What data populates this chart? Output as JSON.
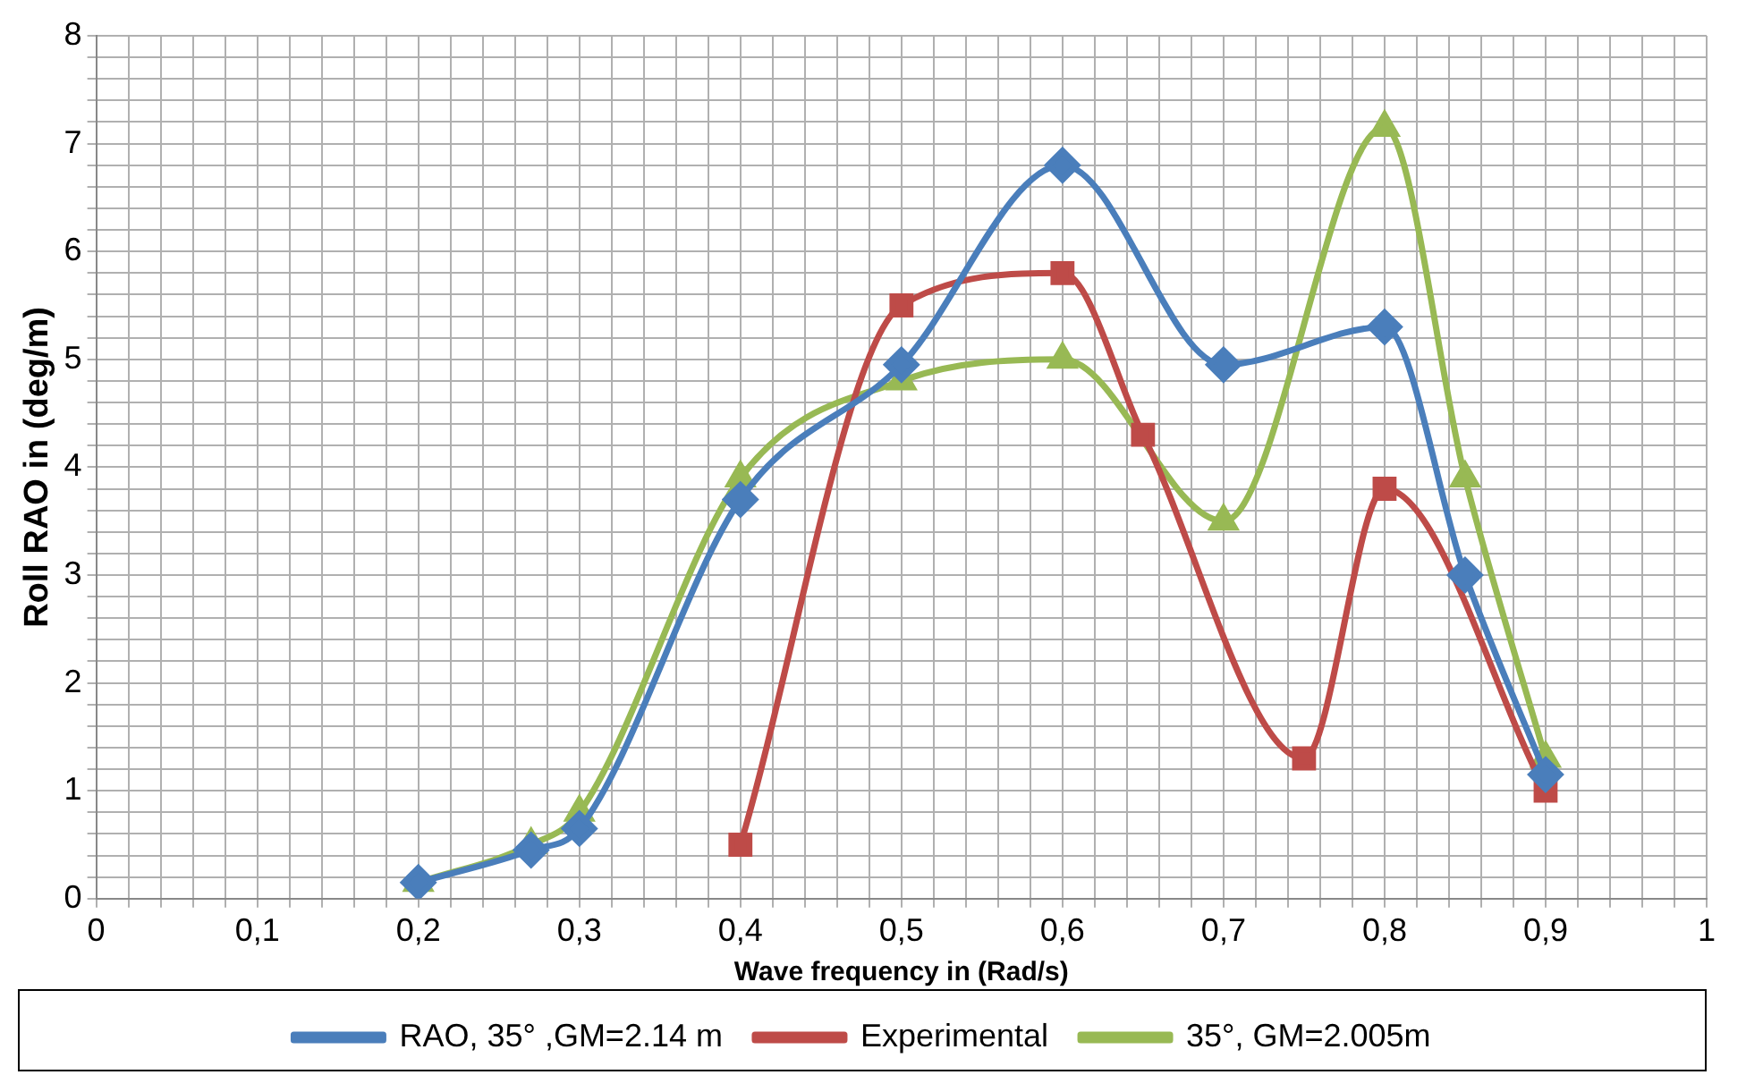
{
  "chart_data": {
    "type": "line",
    "xlabel": "Wave frequency in (Rad/s)",
    "ylabel": "Roll RAO in (deg/m)",
    "series": [
      {
        "name": "RAO, 35° ,GM=2.14 m",
        "color": "#4a7ebb",
        "marker": "diamond",
        "x": [
          0.2,
          0.27,
          0.3,
          0.4,
          0.5,
          0.6,
          0.7,
          0.8,
          0.85,
          0.9
        ],
        "values": [
          0.15,
          0.45,
          0.65,
          3.7,
          4.95,
          6.8,
          4.95,
          5.3,
          3.0,
          1.15
        ]
      },
      {
        "name": "Experimental",
        "color": "#be4b48",
        "marker": "square",
        "x": [
          0.4,
          0.5,
          0.6,
          0.65,
          0.75,
          0.8,
          0.9
        ],
        "values": [
          0.5,
          5.5,
          5.8,
          4.3,
          1.3,
          3.8,
          1.0
        ]
      },
      {
        "name": "35°, GM=2.005m",
        "color": "#98b954",
        "marker": "triangle",
        "x": [
          0.2,
          0.27,
          0.3,
          0.4,
          0.5,
          0.6,
          0.7,
          0.8,
          0.85,
          0.9
        ],
        "values": [
          0.15,
          0.5,
          0.8,
          3.9,
          4.8,
          5.0,
          3.5,
          7.15,
          3.9,
          1.3
        ]
      }
    ],
    "xlim": [
      0,
      1
    ],
    "xticks": [
      0,
      {
        "value": 0.02,
        "label": null
      },
      {
        "value": 0.04,
        "label": null
      },
      {
        "value": 0.06,
        "label": null
      },
      {
        "value": 0.08,
        "label": null
      },
      {
        "value": 0.1,
        "label": "0,1"
      },
      {
        "value": 0.12,
        "label": null
      },
      {
        "value": 0.14,
        "label": null
      },
      {
        "value": 0.16,
        "label": null
      },
      {
        "value": 0.18,
        "label": null
      },
      {
        "value": 0.2,
        "label": "0,2"
      },
      {
        "value": 0.22,
        "label": null
      },
      {
        "value": 0.24,
        "label": null
      },
      {
        "value": 0.26,
        "label": null
      },
      {
        "value": 0.28,
        "label": null
      },
      {
        "value": 0.3,
        "label": "0,3"
      },
      {
        "value": 0.32,
        "label": null
      },
      {
        "value": 0.34,
        "label": null
      },
      {
        "value": 0.36,
        "label": null
      },
      {
        "value": 0.38,
        "label": null
      },
      {
        "value": 0.4,
        "label": "0,4"
      },
      {
        "value": 0.42,
        "label": null
      },
      {
        "value": 0.44,
        "label": null
      },
      {
        "value": 0.46,
        "label": null
      },
      {
        "value": 0.48,
        "label": null
      },
      {
        "value": 0.5,
        "label": "0,5"
      },
      {
        "value": 0.52,
        "label": null
      },
      {
        "value": 0.54,
        "label": null
      },
      {
        "value": 0.56,
        "label": null
      },
      {
        "value": 0.58,
        "label": null
      },
      {
        "value": 0.6,
        "label": "0,6"
      },
      {
        "value": 0.62,
        "label": null
      },
      {
        "value": 0.64,
        "label": null
      },
      {
        "value": 0.66,
        "label": null
      },
      {
        "value": 0.68,
        "label": null
      },
      {
        "value": 0.7,
        "label": "0,7"
      },
      {
        "value": 0.72,
        "label": null
      },
      {
        "value": 0.74,
        "label": null
      },
      {
        "value": 0.76,
        "label": null
      },
      {
        "value": 0.78,
        "label": null
      },
      {
        "value": 0.8,
        "label": "0,8"
      },
      {
        "value": 0.82,
        "label": null
      },
      {
        "value": 0.84,
        "label": null
      },
      {
        "value": 0.86,
        "label": null
      },
      {
        "value": 0.88,
        "label": null
      },
      {
        "value": 0.9,
        "label": "0,9"
      },
      {
        "value": 0.92,
        "label": null
      },
      {
        "value": 0.94,
        "label": null
      },
      {
        "value": 0.96,
        "label": null
      },
      {
        "value": 0.98,
        "label": null
      },
      1
    ],
    "ylim": [
      0,
      8
    ],
    "yticks": [
      0,
      {
        "value": 0.2,
        "label": null
      },
      {
        "value": 0.4,
        "label": null
      },
      {
        "value": 0.6,
        "label": null
      },
      {
        "value": 0.8,
        "label": null
      },
      1,
      {
        "value": 1.2,
        "label": null
      },
      {
        "value": 1.4,
        "label": null
      },
      {
        "value": 1.6,
        "label": null
      },
      {
        "value": 1.8,
        "label": null
      },
      2,
      {
        "value": 2.2,
        "label": null
      },
      {
        "value": 2.4,
        "label": null
      },
      {
        "value": 2.6,
        "label": null
      },
      {
        "value": 2.8,
        "label": null
      },
      3,
      {
        "value": 3.2,
        "label": null
      },
      {
        "value": 3.4,
        "label": null
      },
      {
        "value": 3.6,
        "label": null
      },
      {
        "value": 3.8,
        "label": null
      },
      4,
      {
        "value": 4.2,
        "label": null
      },
      {
        "value": 4.4,
        "label": null
      },
      {
        "value": 4.6,
        "label": null
      },
      {
        "value": 4.8,
        "label": null
      },
      5,
      {
        "value": 5.2,
        "label": null
      },
      {
        "value": 5.4,
        "label": null
      },
      {
        "value": 5.6,
        "label": null
      },
      {
        "value": 5.8,
        "label": null
      },
      6,
      {
        "value": 6.2,
        "label": null
      },
      {
        "value": 6.4,
        "label": null
      },
      {
        "value": 6.6,
        "label": null
      },
      {
        "value": 6.8,
        "label": null
      },
      7,
      {
        "value": 7.2,
        "label": null
      },
      {
        "value": 7.4,
        "label": null
      },
      {
        "value": 7.6,
        "label": null
      },
      {
        "value": 7.8,
        "label": null
      },
      8
    ],
    "grid": true,
    "legend": "bottom",
    "line_style": "solid"
  }
}
